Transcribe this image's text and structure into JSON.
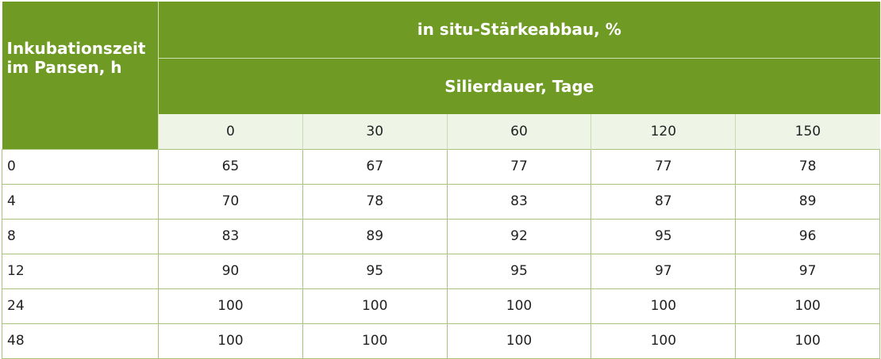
{
  "table": {
    "corner_label_line1": "Inkubationszeit",
    "corner_label_line2": "im Pansen, h",
    "group_header": "in situ-Stärkeabbau, %",
    "subgroup_header": "Silierdauer, Tage",
    "day_headers": [
      "0",
      "30",
      "60",
      "120",
      "150"
    ],
    "rows": [
      {
        "label": "0",
        "values": [
          "65",
          "67",
          "77",
          "77",
          "78"
        ]
      },
      {
        "label": "4",
        "values": [
          "70",
          "78",
          "83",
          "87",
          "89"
        ]
      },
      {
        "label": "8",
        "values": [
          "83",
          "89",
          "92",
          "95",
          "96"
        ]
      },
      {
        "label": "12",
        "values": [
          "90",
          "95",
          "95",
          "97",
          "97"
        ]
      },
      {
        "label": "24",
        "values": [
          "100",
          "100",
          "100",
          "100",
          "100"
        ]
      },
      {
        "label": "48",
        "values": [
          "100",
          "100",
          "100",
          "100",
          "100"
        ]
      }
    ]
  },
  "colors": {
    "header_green": "#6f9a24",
    "subheader_tint": "#eef4e6",
    "border_green": "#a9c27c"
  }
}
